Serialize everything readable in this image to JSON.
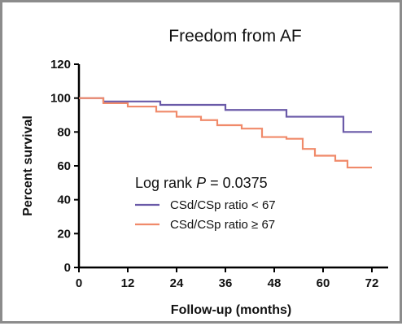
{
  "chart_data": {
    "type": "line",
    "title": "Freedom from AF",
    "xlabel": "Follow-up (months)",
    "ylabel": "Percent survival",
    "xlim": [
      0,
      76
    ],
    "ylim": [
      0,
      120
    ],
    "xticks": [
      0,
      12,
      24,
      36,
      48,
      60,
      72
    ],
    "yticks": [
      0,
      20,
      40,
      60,
      80,
      100,
      120
    ],
    "grid": false,
    "annotation": {
      "prefix": "Log rank ",
      "p_symbol": "P",
      "suffix": " = 0.0375"
    },
    "legend_position": "center-right",
    "series": [
      {
        "name": "CSd/CSp ratio < 67",
        "color": "#6a5aa8",
        "steps": [
          [
            0,
            100
          ],
          [
            6,
            98
          ],
          [
            20,
            96
          ],
          [
            36,
            93
          ],
          [
            51,
            89
          ],
          [
            65,
            80
          ],
          [
            72,
            80
          ]
        ]
      },
      {
        "name": "CSd/CSp ratio ≥  67",
        "color": "#f08a6a",
        "steps": [
          [
            0,
            100
          ],
          [
            6,
            97
          ],
          [
            12,
            95
          ],
          [
            19,
            92
          ],
          [
            24,
            89
          ],
          [
            30,
            87
          ],
          [
            34,
            84
          ],
          [
            40,
            82
          ],
          [
            45,
            77
          ],
          [
            51,
            76
          ],
          [
            55,
            70
          ],
          [
            58,
            66
          ],
          [
            63,
            63
          ],
          [
            66,
            59
          ],
          [
            72,
            59
          ]
        ]
      }
    ]
  }
}
